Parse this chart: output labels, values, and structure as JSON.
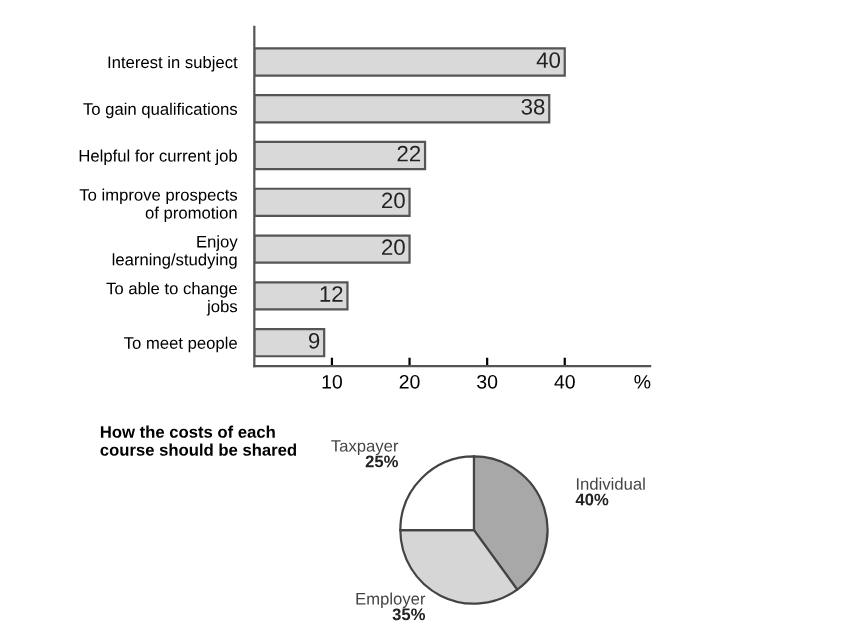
{
  "chart_data": [
    {
      "type": "bar",
      "orientation": "horizontal",
      "categories": [
        "Interest in subject",
        "To gain qualifications",
        "Helpful for current job",
        "To improve prospects\nof promotion",
        "Enjoy\nlearning/studying",
        "To able to change\njobs",
        "To meet people"
      ],
      "values": [
        40,
        38,
        22,
        20,
        20,
        12,
        9
      ],
      "color": "#d9d9d9",
      "data_labels": true,
      "xlim": [
        0,
        51
      ],
      "xticks": [
        10,
        20,
        30,
        40,
        {
          "value": 50,
          "label": "%"
        }
      ],
      "grid": false,
      "legend": false
    },
    {
      "type": "pie",
      "title": "How the costs of each\ncourse should be shared",
      "categories": [
        "Individual",
        "Employer",
        "Taxpayer"
      ],
      "values": [
        40,
        35,
        25
      ],
      "colors": [
        "#a8a8a8",
        "#d6d6d6",
        "#ffffff"
      ],
      "value_labels": [
        "40%",
        "35%",
        "25%"
      ],
      "legend": false
    }
  ]
}
